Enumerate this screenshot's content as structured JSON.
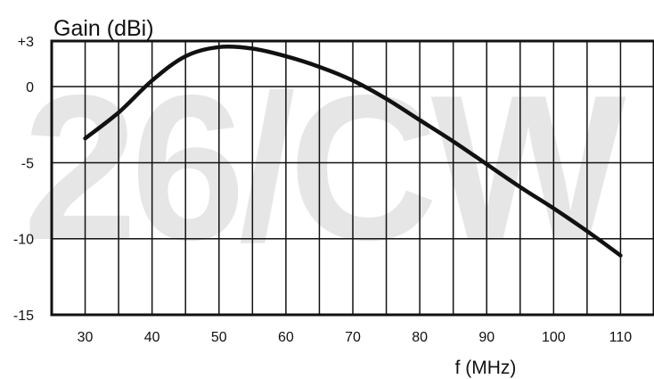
{
  "chart_data": {
    "type": "line",
    "title": "",
    "xlabel": "f (MHz)",
    "ylabel": "Gain (dBi)",
    "watermark": "26/CW",
    "xlim": [
      25,
      115
    ],
    "ylim": [
      -15,
      3
    ],
    "x_ticks": [
      30,
      40,
      50,
      60,
      70,
      80,
      90,
      100,
      110
    ],
    "x_tick_labels": [
      "30",
      "40",
      "50",
      "60",
      "70",
      "80",
      "90",
      "100",
      "110"
    ],
    "y_ticks": [
      3,
      0,
      -5,
      -10,
      -15
    ],
    "y_tick_labels": [
      "+3",
      "0",
      "-5",
      "-10",
      "-15"
    ],
    "vertical_grid_step": 5,
    "grid": true,
    "line_color": "#111111",
    "watermark_color": "#e6e6e6",
    "series": [
      {
        "x": [
          30,
          35,
          40,
          45,
          50,
          55,
          60,
          65,
          70,
          75,
          80,
          85,
          90,
          95,
          100,
          105,
          110
        ],
        "values": [
          -3.4,
          -1.7,
          0.4,
          2.0,
          2.6,
          2.5,
          2.0,
          1.3,
          0.4,
          -0.8,
          -2.2,
          -3.6,
          -5.1,
          -6.6,
          -8.0,
          -9.5,
          -11.1
        ]
      }
    ]
  }
}
